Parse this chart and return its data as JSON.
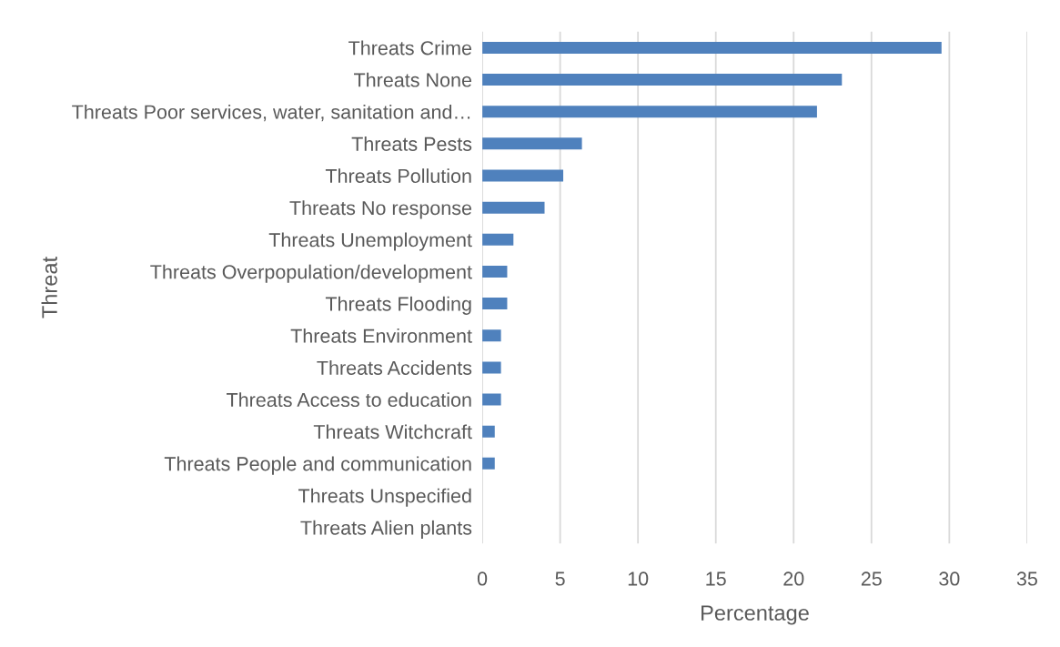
{
  "chart_data": {
    "type": "bar",
    "orientation": "horizontal",
    "xlabel": "Percentage",
    "ylabel": "Threat",
    "categories": [
      "Threats Crime",
      "Threats None",
      "Threats Poor services, water, sanitation and…",
      "Threats Pests",
      "Threats Pollution",
      "Threats No response",
      "Threats Unemployment",
      "Threats Overpopulation/development",
      "Threats Flooding",
      "Threats Environment",
      "Threats Accidents",
      "Threats Access to education",
      "Threats Witchcraft",
      "Threats People and communication",
      "Threats Unspecified",
      "Threats Alien plants"
    ],
    "values": [
      29.5,
      23.1,
      21.5,
      6.4,
      5.2,
      4.0,
      2.0,
      1.6,
      1.6,
      1.2,
      1.2,
      1.2,
      0.8,
      0.8,
      0,
      0
    ],
    "color": "#4f81bd",
    "xlim": [
      0,
      35
    ],
    "xticks": [
      0,
      5,
      10,
      15,
      20,
      25,
      30,
      35
    ],
    "grid": "x"
  }
}
